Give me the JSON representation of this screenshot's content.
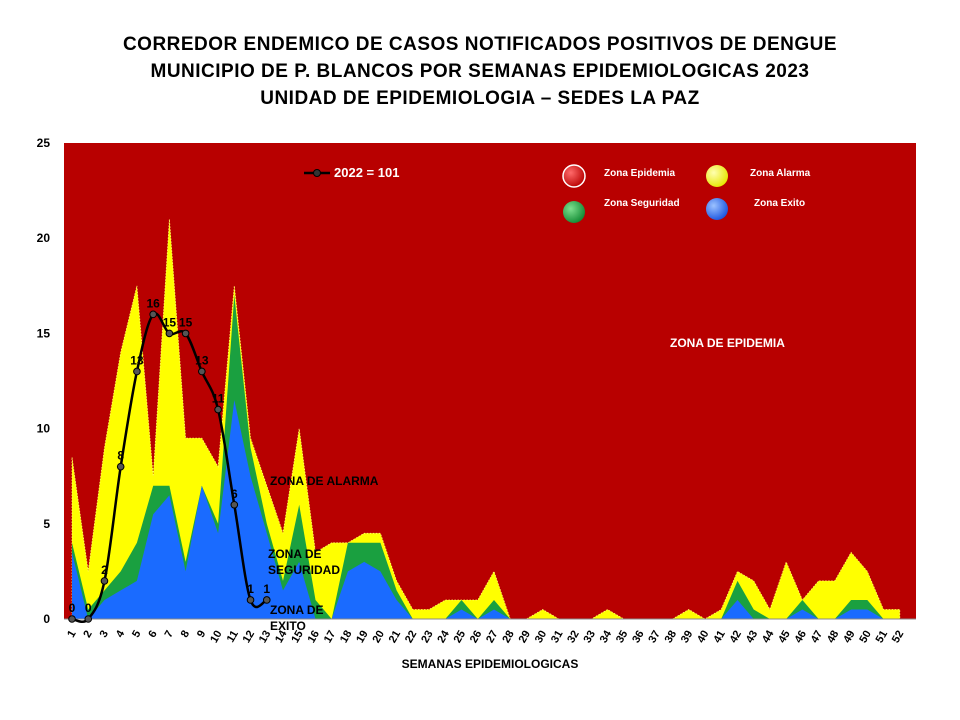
{
  "title_lines": [
    "CORREDOR ENDEMICO DE CASOS NOTIFICADOS POSITIVOS DE DENGUE",
    "MUNICIPIO DE P. BLANCOS  POR SEMANAS EPIDEMIOLOGICAS 2023",
    "UNIDAD DE EPIDEMIOLOGIA – SEDES LA PAZ"
  ],
  "colors": {
    "epidemia": "#b80000",
    "alarma": "#ffff00",
    "seguridad": "#1aa040",
    "exito": "#1a6bff",
    "line": "#000000"
  },
  "chart_data": {
    "type": "area",
    "xlabel": "SEMANAS EPIDEMIOLOGICAS",
    "ylabel": "",
    "ylim": [
      0,
      25
    ],
    "yticks": [
      "0",
      "5",
      "10",
      "15",
      "20",
      "25"
    ],
    "x": [
      1,
      2,
      3,
      4,
      5,
      6,
      7,
      8,
      9,
      10,
      11,
      12,
      13,
      14,
      15,
      16,
      17,
      18,
      19,
      20,
      21,
      22,
      23,
      24,
      25,
      26,
      27,
      28,
      29,
      30,
      31,
      32,
      33,
      34,
      35,
      36,
      37,
      38,
      39,
      40,
      41,
      42,
      43,
      44,
      45,
      46,
      47,
      48,
      49,
      50,
      51,
      52
    ],
    "x_tick_labels": [
      "1",
      "2",
      "3",
      "4",
      "5",
      "6",
      "7",
      "8",
      "9",
      "10",
      "11",
      "12",
      "13",
      "14",
      "15",
      "16",
      "17",
      "18",
      "19",
      "20",
      "21",
      "22",
      "23",
      "24",
      "25",
      "26",
      "27",
      "28",
      "29",
      "30",
      "31",
      "32",
      "33",
      "34",
      "35",
      "36",
      "37",
      "38",
      "39",
      "40",
      "41",
      "42",
      "43",
      "44",
      "45",
      "46",
      "47",
      "48",
      "49",
      "50",
      "51",
      "52"
    ],
    "zones": [
      {
        "name": "Zona Alarma",
        "values": [
          8.5,
          2.5,
          9,
          14,
          17.5,
          7.5,
          21,
          9.5,
          9.5,
          8,
          17.5,
          9.5,
          7,
          4.5,
          10,
          3.5,
          4,
          4,
          4.5,
          4.5,
          2,
          0.5,
          0.5,
          1,
          1,
          1,
          2.5,
          0,
          0,
          0.5,
          0,
          0,
          0,
          0.5,
          0,
          0,
          0,
          0,
          0.5,
          0,
          0.5,
          2.5,
          2,
          0.5,
          3,
          1,
          2,
          2,
          3.5,
          2.5,
          0.5,
          0.5
        ]
      },
      {
        "name": "Zona Seguridad",
        "values": [
          4,
          0.5,
          1.5,
          2.5,
          4,
          7,
          7,
          3,
          7,
          5,
          17,
          9,
          5,
          2,
          6,
          1,
          0,
          4,
          4,
          4,
          1.5,
          0,
          0,
          0,
          1,
          0,
          1,
          0,
          0,
          0,
          0,
          0,
          0,
          0,
          0,
          0,
          0,
          0,
          0,
          0,
          0,
          2,
          0.5,
          0,
          0,
          1,
          0,
          0,
          1,
          1,
          0,
          0
        ]
      },
      {
        "name": "Zona Exito",
        "values": [
          3.5,
          0,
          1,
          1.5,
          2,
          5.5,
          6.5,
          2.5,
          7,
          4.5,
          11.5,
          7.5,
          4.5,
          1.5,
          3,
          0,
          0,
          2.5,
          3,
          2.5,
          1,
          0,
          0,
          0,
          0.5,
          0,
          0.5,
          0,
          0,
          0,
          0,
          0,
          0,
          0,
          0,
          0,
          0,
          0,
          0,
          0,
          0,
          1,
          0,
          0,
          0,
          0.5,
          0,
          0,
          0.5,
          0.5,
          0,
          0
        ]
      }
    ],
    "series": [
      {
        "name": "2022 = 101",
        "x": [
          1,
          2,
          3,
          4,
          5,
          6,
          7,
          8,
          9,
          10,
          11,
          12,
          13
        ],
        "values": [
          0,
          0,
          2,
          8,
          13,
          16,
          15,
          15,
          13,
          11,
          6,
          1,
          1
        ]
      }
    ],
    "point_labels": [
      "0",
      "0",
      "2",
      "8",
      "13",
      "16",
      "15",
      "15",
      "13",
      "11",
      "6",
      "1",
      "1"
    ],
    "legend": {
      "placement": "top-right",
      "items": [
        {
          "label": "Zona Epidemia",
          "color": "#b80000"
        },
        {
          "label": "Zona Alarma",
          "color": "#ffff00"
        },
        {
          "label": "Zona Seguridad",
          "color": "#1aa040"
        },
        {
          "label": "Zona Exito",
          "color": "#1a6bff"
        }
      ]
    },
    "annotations": {
      "epidemia": "ZONA DE EPIDEMIA",
      "alarma": "ZONA DE ALARMA",
      "seguridad_1": "ZONA DE",
      "seguridad_2": "SEGURIDAD",
      "exito_1": "ZONA DE",
      "exito_2": "EXITO"
    }
  }
}
